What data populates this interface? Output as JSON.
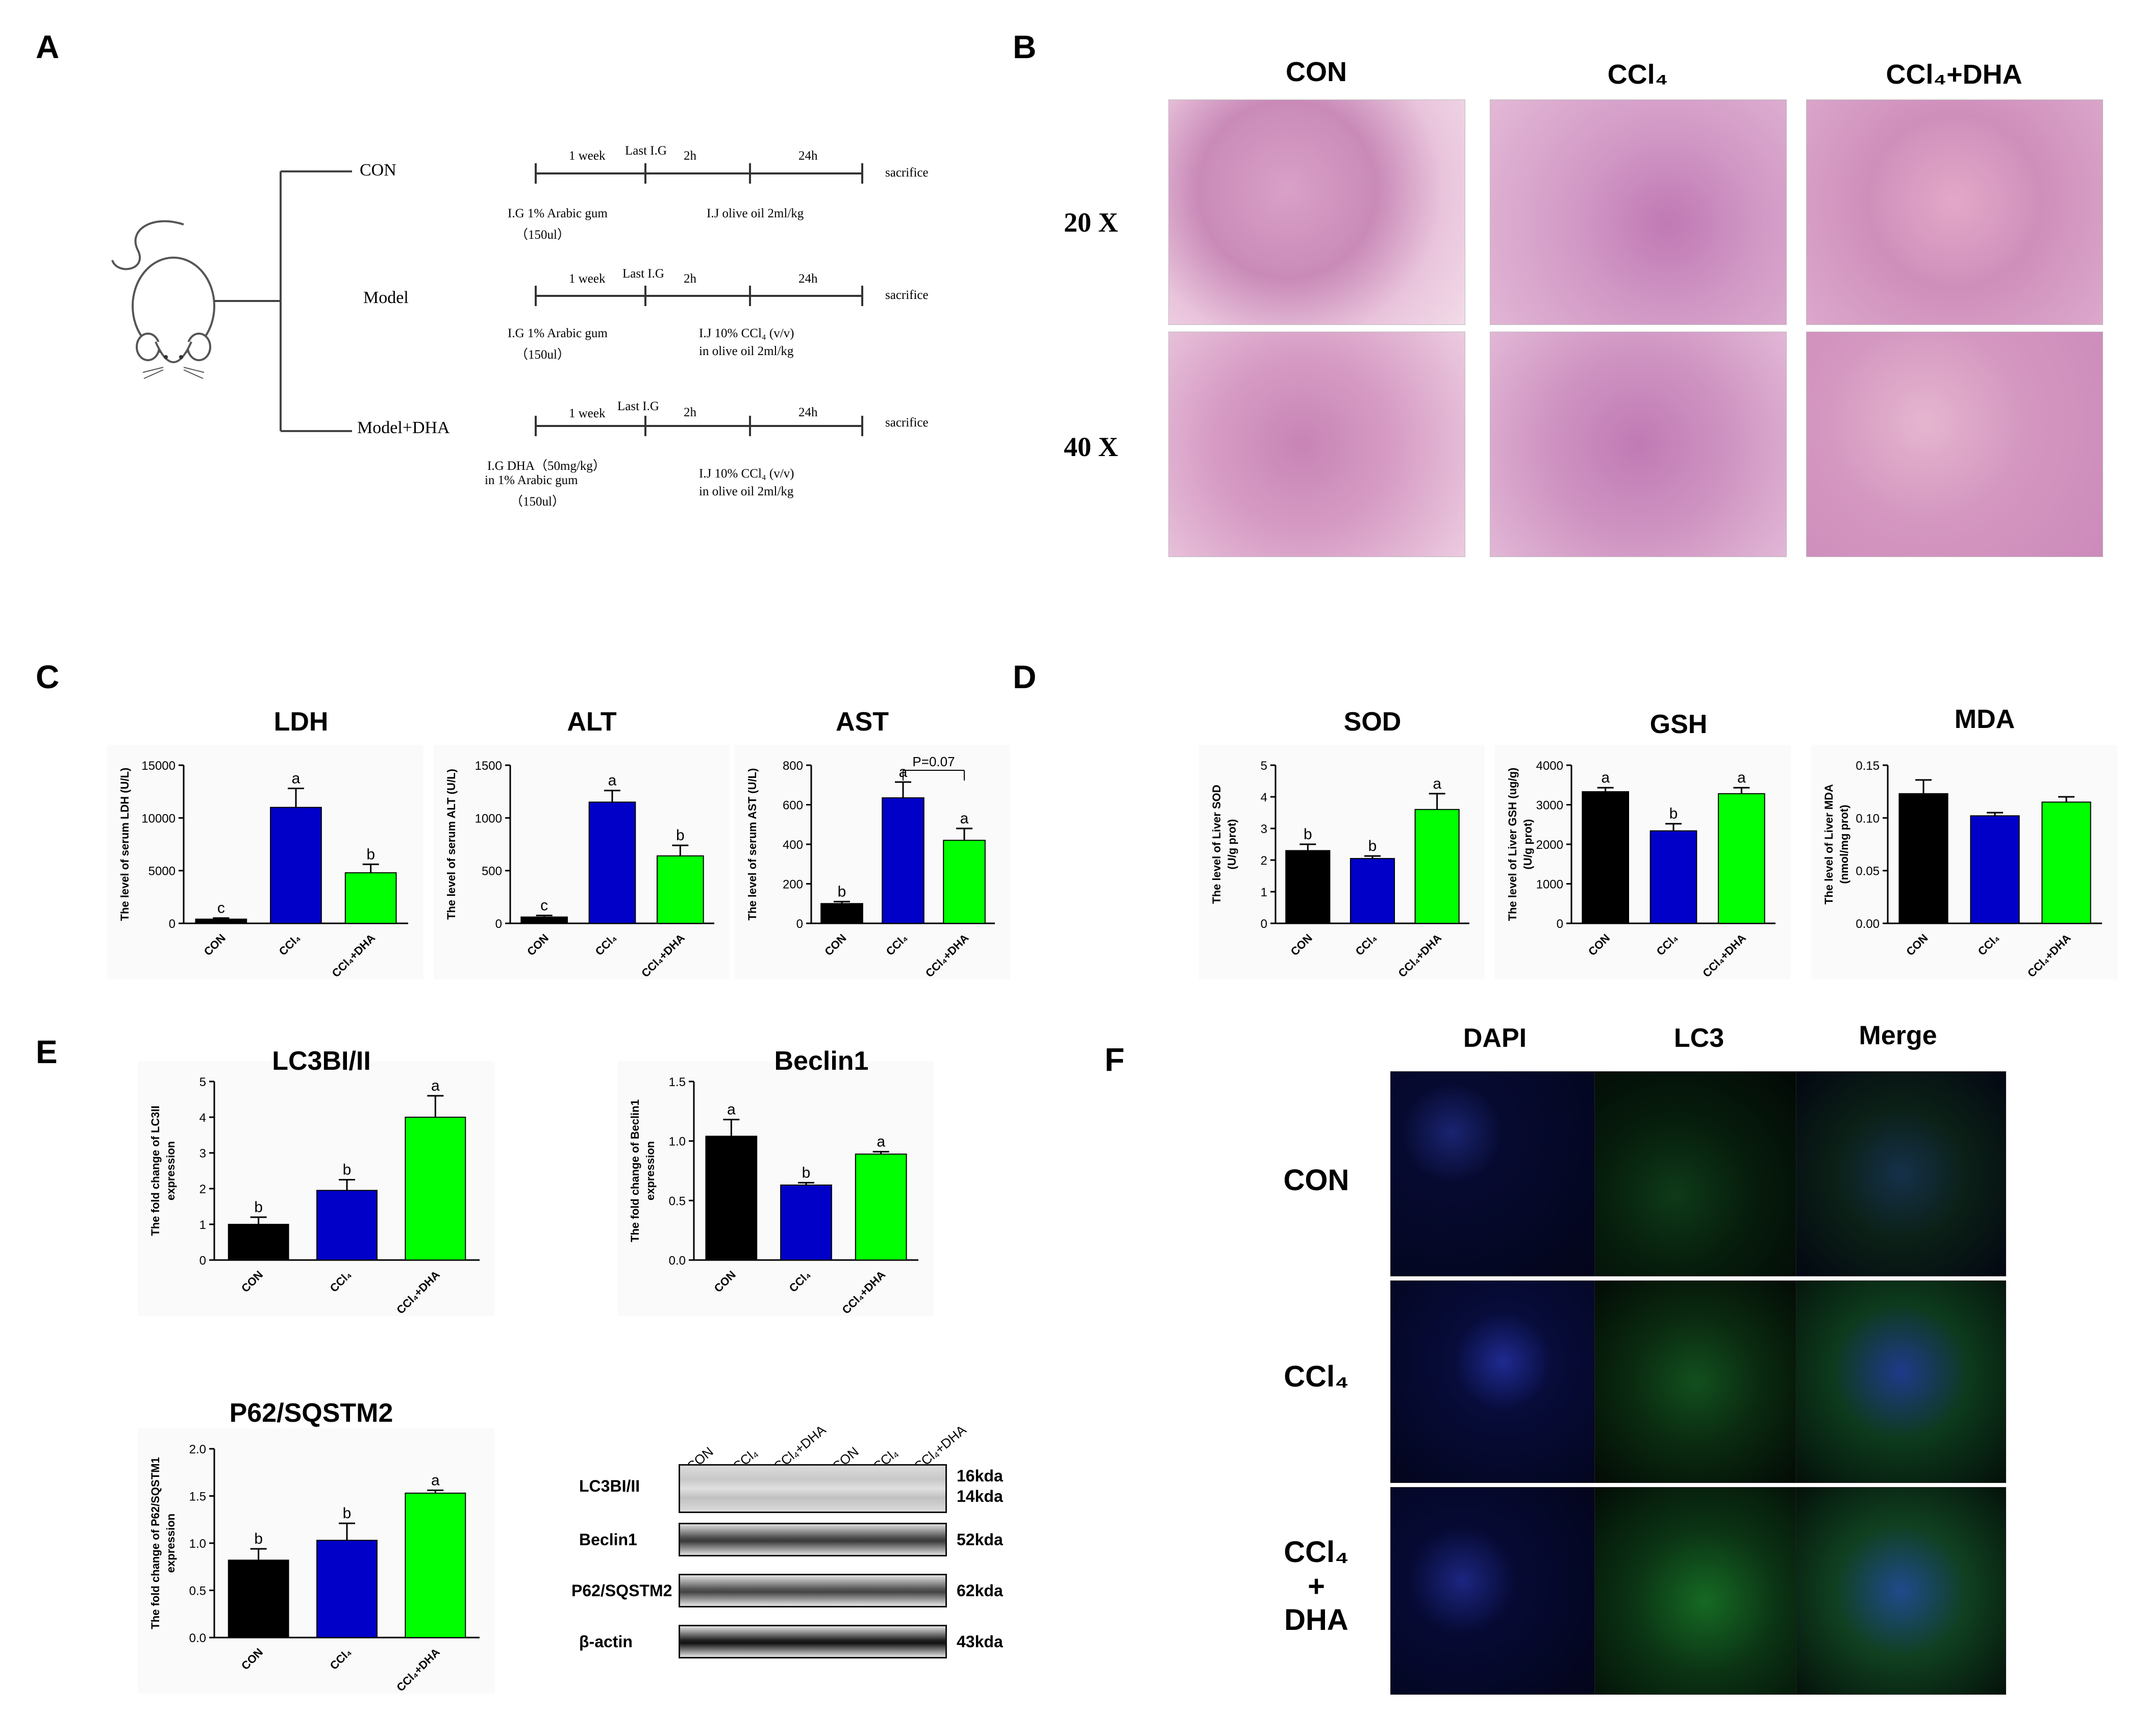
{
  "panels": {
    "A": {
      "label": "A",
      "groups": [
        {
          "name": "CON",
          "timeline": {
            "t1": "1 week",
            "t2": "Last I.G",
            "t3": "2h",
            "t4": "24h",
            "end": "sacrifice"
          },
          "below_left": [
            "I.G 1% Arabic gum",
            "（150ul）"
          ],
          "below_right": [
            "I.J olive oil 2ml/kg"
          ]
        },
        {
          "name": "Model",
          "timeline": {
            "t1": "1 week",
            "t2": "Last I.G",
            "t3": "2h",
            "t4": "24h",
            "end": "sacrifice"
          },
          "below_left": [
            "I.G 1% Arabic gum",
            "（150ul）"
          ],
          "below_right": [
            "I.J 10% CCl₄ (v/v)",
            "in olive oil 2ml/kg"
          ]
        },
        {
          "name": "Model+DHA",
          "timeline": {
            "t1": "1 week",
            "t2": "Last I.G",
            "t3": "2h",
            "t4": "24h",
            "end": "sacrifice"
          },
          "below_left": [
            "I.G DHA（50mg/kg）",
            "in 1% Arabic gum",
            "（150ul）"
          ],
          "below_right": [
            "I.J 10% CCl₄ (v/v)",
            "in olive oil 2ml/kg"
          ]
        }
      ]
    },
    "B": {
      "label": "B",
      "columns": [
        "CON",
        "CCl₄",
        "CCl₄+DHA"
      ],
      "rows": [
        "20 X",
        "40 X"
      ]
    },
    "C": {
      "label": "C"
    },
    "D": {
      "label": "D"
    },
    "E": {
      "label": "E",
      "blot": {
        "lanes": [
          "CON",
          "CCl₄",
          "CCl₄+DHA",
          "CON",
          "CCl₄",
          "CCl₄+DHA"
        ],
        "rows": [
          {
            "label": "LC3BI/II",
            "kda": "16kda",
            "kda2": "14kda"
          },
          {
            "label": "Beclin1",
            "kda": "52kda"
          },
          {
            "label": "P62/SQSTM2",
            "kda": "62kda"
          },
          {
            "label": "β-actin",
            "kda": "43kda"
          }
        ]
      }
    },
    "F": {
      "label": "F",
      "columns": [
        "DAPI",
        "LC3",
        "Merge"
      ],
      "rows": [
        "CON",
        "CCl₄",
        "CCl₄\n+\nDHA"
      ]
    }
  },
  "colors": {
    "con": "#000000",
    "ccl4": "#0000c8",
    "dha": "#00ff00"
  },
  "chart_data": [
    {
      "id": "ldh",
      "type": "bar",
      "title": "LDH",
      "ylabel": "The level of serum LDH (U/L)",
      "categories": [
        "CON",
        "CCl₄",
        "CCl₄+DHA"
      ],
      "values": [
        400,
        11000,
        4800
      ],
      "errors": [
        100,
        1800,
        800
      ],
      "letters": [
        "c",
        "a",
        "b"
      ],
      "ylim": [
        0,
        15000
      ],
      "yticks": [
        0,
        5000,
        10000,
        15000
      ]
    },
    {
      "id": "alt",
      "type": "bar",
      "title": "ALT",
      "ylabel": "The level of serum ALT (U/L)",
      "categories": [
        "CON",
        "CCl₄",
        "CCl₄+DHA"
      ],
      "values": [
        60,
        1150,
        640
      ],
      "errors": [
        15,
        110,
        100
      ],
      "letters": [
        "c",
        "a",
        "b"
      ],
      "ylim": [
        0,
        1500
      ],
      "yticks": [
        0,
        500,
        1000,
        1500
      ]
    },
    {
      "id": "ast",
      "type": "bar",
      "title": "AST",
      "ylabel": "The level of serum AST (U/L)",
      "categories": [
        "CON",
        "CCl₄",
        "CCl₄+DHA"
      ],
      "values": [
        100,
        635,
        420
      ],
      "errors": [
        10,
        80,
        60
      ],
      "letters": [
        "b",
        "a",
        "a"
      ],
      "ylim": [
        0,
        800
      ],
      "yticks": [
        0,
        200,
        400,
        600,
        800
      ],
      "annotation": "P=0.07"
    },
    {
      "id": "sod",
      "type": "bar",
      "title": "SOD",
      "ylabel": "The level of Liver SOD\n(U/g prot)",
      "categories": [
        "CON",
        "CCl₄",
        "CCl₄+DHA"
      ],
      "values": [
        2.3,
        2.05,
        3.6
      ],
      "errors": [
        0.2,
        0.08,
        0.5
      ],
      "letters": [
        "b",
        "b",
        "a"
      ],
      "ylim": [
        0,
        5
      ],
      "yticks": [
        0,
        1,
        2,
        3,
        4,
        5
      ]
    },
    {
      "id": "gsh",
      "type": "bar",
      "title": "GSH",
      "ylabel": "The level of Liver GSH (ug/g)\n(U/g prot)",
      "categories": [
        "CON",
        "CCl₄",
        "CCl₄+DHA"
      ],
      "values": [
        3330,
        2340,
        3280
      ],
      "errors": [
        100,
        180,
        150
      ],
      "letters": [
        "a",
        "b",
        "a"
      ],
      "ylim": [
        0,
        4000
      ],
      "yticks": [
        0,
        1000,
        2000,
        3000,
        4000
      ]
    },
    {
      "id": "mda",
      "type": "bar",
      "title": "MDA",
      "ylabel": "The level of Liver MDA\n(nmol/mg prot)",
      "categories": [
        "CON",
        "CCl₄",
        "CCl₄+DHA"
      ],
      "values": [
        0.123,
        0.102,
        0.115
      ],
      "errors": [
        0.013,
        0.003,
        0.005
      ],
      "letters": [
        "",
        "",
        ""
      ],
      "ylim": [
        0,
        0.15
      ],
      "yticks": [
        0.0,
        0.05,
        0.1,
        0.15
      ],
      "ytick_labels": [
        "0.00",
        "0.05",
        "0.10",
        "0.15"
      ]
    },
    {
      "id": "lc3",
      "type": "bar",
      "title": "LC3BI/II",
      "ylabel": "The fold change of LC3II\nexpression",
      "categories": [
        "CON",
        "CCl₄",
        "CCl₄+DHA"
      ],
      "values": [
        1.0,
        1.95,
        4.0
      ],
      "errors": [
        0.2,
        0.3,
        0.6
      ],
      "letters": [
        "b",
        "b",
        "a"
      ],
      "ylim": [
        0,
        5
      ],
      "yticks": [
        0,
        1,
        2,
        3,
        4,
        5
      ]
    },
    {
      "id": "beclin",
      "type": "bar",
      "title": "Beclin1",
      "ylabel": "The fold change of Beclin1\nexpression",
      "categories": [
        "CON",
        "CCl₄",
        "CCl₄+DHA"
      ],
      "values": [
        1.04,
        0.63,
        0.89
      ],
      "errors": [
        0.14,
        0.02,
        0.02
      ],
      "letters": [
        "a",
        "b",
        "a"
      ],
      "ylim": [
        0,
        1.5
      ],
      "yticks": [
        0,
        0.5,
        1.0,
        1.5
      ],
      "ytick_labels": [
        "0.0",
        "0.5",
        "1.0",
        "1.5"
      ]
    },
    {
      "id": "p62",
      "type": "bar",
      "title": "P62/SQSTM2",
      "ylabel": "The fold change of P62/SQSTM1\nexpression",
      "categories": [
        "CON",
        "CCl₄",
        "CCl₄+DHA"
      ],
      "values": [
        0.82,
        1.03,
        1.53
      ],
      "errors": [
        0.12,
        0.18,
        0.03
      ],
      "letters": [
        "b",
        "b",
        "a"
      ],
      "ylim": [
        0,
        2.0
      ],
      "yticks": [
        0,
        0.5,
        1.0,
        1.5,
        2.0
      ],
      "ytick_labels": [
        "0.0",
        "0.5",
        "1.0",
        "1.5",
        "2.0"
      ]
    }
  ]
}
